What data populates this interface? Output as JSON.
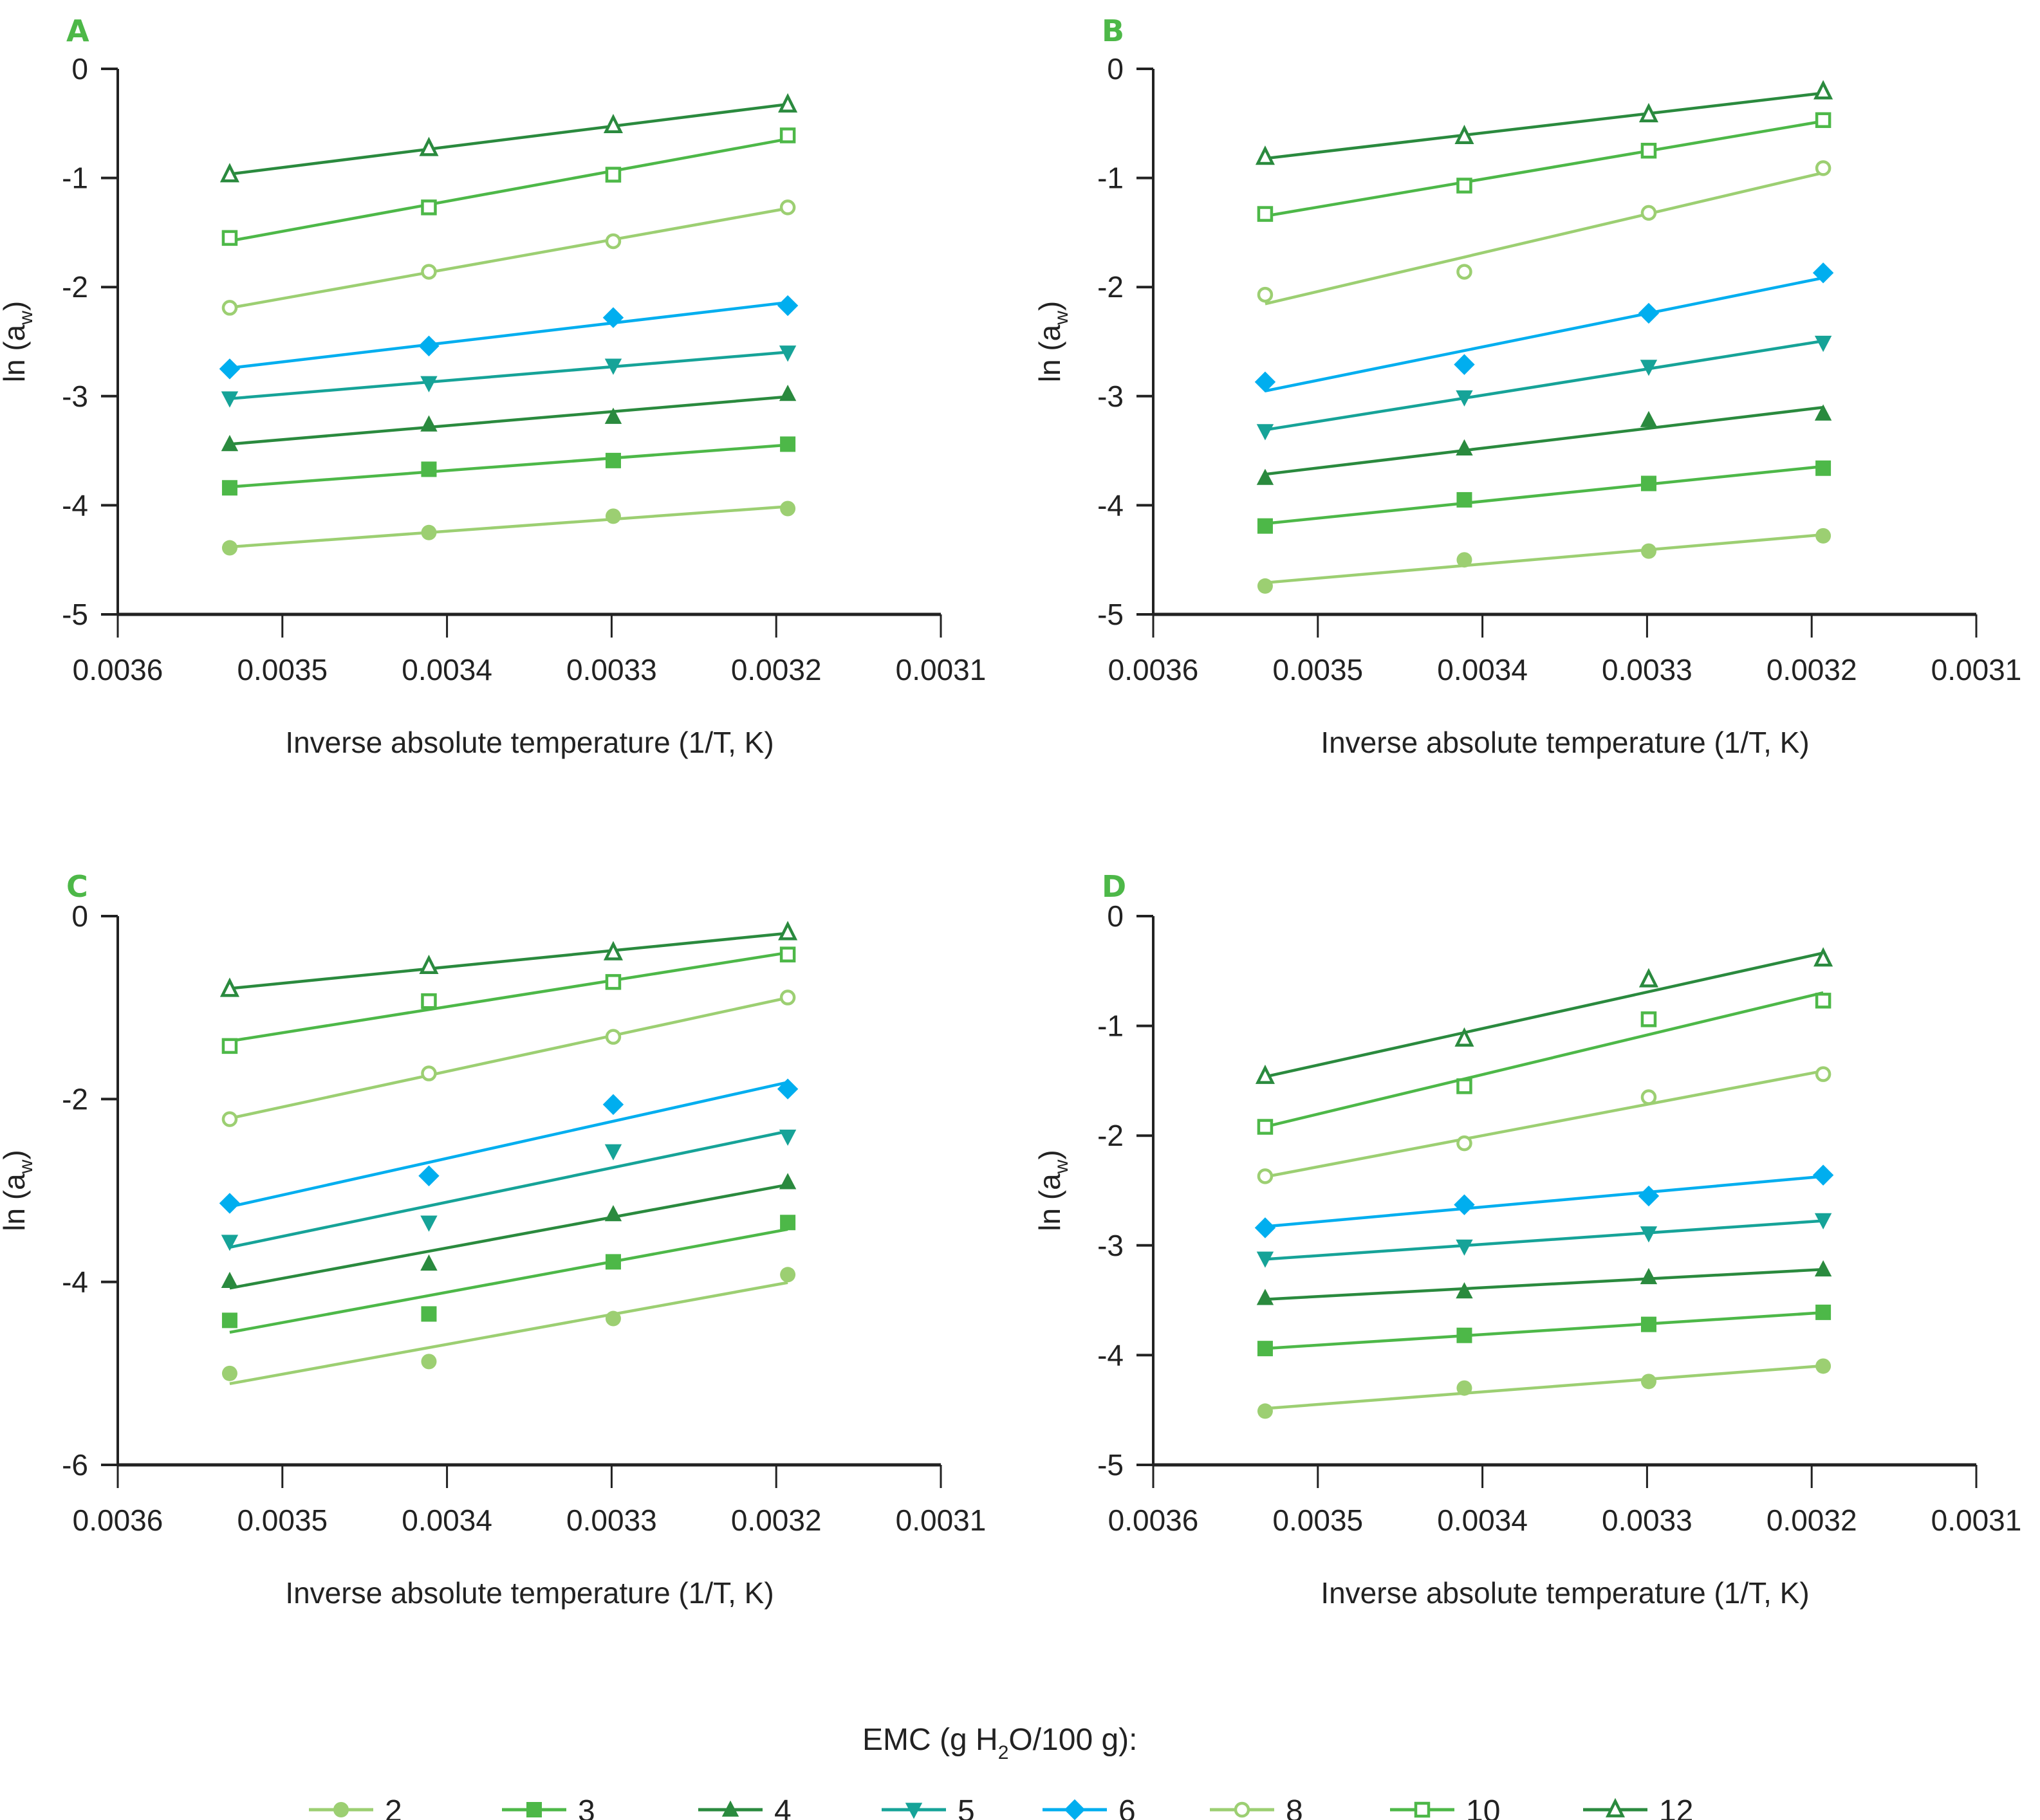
{
  "chart_data": [
    {
      "panel": "A",
      "type": "line",
      "xlabel": "Inverse absolute temperature (1/T, K)",
      "ylabel": "ln (a_w)",
      "xlim": [
        0.0036,
        0.0031
      ],
      "ylim": [
        -5,
        0
      ],
      "xticks": [
        "0.0036",
        "0.0035",
        "0.0034",
        "0.0033",
        "0.0032",
        "0.0031"
      ],
      "yticks": [
        "0",
        "-1",
        "-2",
        "-3",
        "-4",
        "-5"
      ],
      "x": [
        0.003532,
        0.003411,
        0.003299,
        0.003193
      ],
      "series": [
        {
          "name": "2",
          "values": [
            -4.39,
            -4.25,
            -4.1,
            -4.03
          ]
        },
        {
          "name": "3",
          "values": [
            -3.84,
            -3.67,
            -3.59,
            -3.44
          ]
        },
        {
          "name": "4",
          "values": [
            -3.44,
            -3.26,
            -3.19,
            -2.98
          ]
        },
        {
          "name": "5",
          "values": [
            -3.02,
            -2.88,
            -2.72,
            -2.6
          ]
        },
        {
          "name": "6",
          "values": [
            -2.75,
            -2.54,
            -2.28,
            -2.17
          ]
        },
        {
          "name": "8",
          "values": [
            -2.19,
            -1.86,
            -1.58,
            -1.27
          ]
        },
        {
          "name": "10",
          "values": [
            -1.55,
            -1.27,
            -0.97,
            -0.61
          ]
        },
        {
          "name": "12",
          "values": [
            -0.97,
            -0.73,
            -0.52,
            -0.33
          ]
        }
      ]
    },
    {
      "panel": "B",
      "type": "line",
      "xlabel": "Inverse absolute temperature (1/T, K)",
      "ylabel": "ln (a_w)",
      "xlim": [
        0.0036,
        0.0031
      ],
      "ylim": [
        -5,
        0
      ],
      "xticks": [
        "0.0036",
        "0.0035",
        "0.0034",
        "0.0033",
        "0.0032",
        "0.0031"
      ],
      "yticks": [
        "0",
        "-1",
        "-2",
        "-3",
        "-4",
        "-5"
      ],
      "x": [
        0.003532,
        0.003411,
        0.003299,
        0.003193
      ],
      "series": [
        {
          "name": "2",
          "values": [
            -4.74,
            -4.5,
            -4.42,
            -4.28
          ]
        },
        {
          "name": "3",
          "values": [
            -4.19,
            -3.95,
            -3.8,
            -3.66
          ]
        },
        {
          "name": "4",
          "values": [
            -3.75,
            -3.48,
            -3.22,
            -3.16
          ]
        },
        {
          "name": "5",
          "values": [
            -3.32,
            -3.01,
            -2.73,
            -2.51
          ]
        },
        {
          "name": "6",
          "values": [
            -2.87,
            -2.71,
            -2.24,
            -1.87
          ]
        },
        {
          "name": "8",
          "values": [
            -2.07,
            -1.86,
            -1.32,
            -0.91
          ]
        },
        {
          "name": "10",
          "values": [
            -1.33,
            -1.07,
            -0.75,
            -0.47
          ]
        },
        {
          "name": "12",
          "values": [
            -0.81,
            -0.62,
            -0.42,
            -0.21
          ]
        }
      ]
    },
    {
      "panel": "C",
      "type": "line",
      "xlabel": "Inverse absolute temperature (1/T, K)",
      "ylabel": "ln (a_w)",
      "xlim": [
        0.0036,
        0.0031
      ],
      "ylim": [
        -6,
        0
      ],
      "xticks": [
        "0.0036",
        "0.0035",
        "0.0034",
        "0.0033",
        "0.0032",
        "0.0031"
      ],
      "yticks": [
        "0",
        "-2",
        "-4",
        "-6"
      ],
      "x": [
        0.003532,
        0.003411,
        0.003299,
        0.003193
      ],
      "series": [
        {
          "name": "2",
          "values": [
            -5.0,
            -4.87,
            -4.4,
            -3.92
          ]
        },
        {
          "name": "3",
          "values": [
            -4.42,
            -4.35,
            -3.78,
            -3.35
          ]
        },
        {
          "name": "4",
          "values": [
            -3.99,
            -3.8,
            -3.26,
            -2.91
          ]
        },
        {
          "name": "5",
          "values": [
            -3.56,
            -3.35,
            -2.57,
            -2.41
          ]
        },
        {
          "name": "6",
          "values": [
            -3.14,
            -2.84,
            -2.06,
            -1.89
          ]
        },
        {
          "name": "8",
          "values": [
            -2.22,
            -1.72,
            -1.32,
            -0.89
          ]
        },
        {
          "name": "10",
          "values": [
            -1.42,
            -0.93,
            -0.72,
            -0.42
          ]
        },
        {
          "name": "12",
          "values": [
            -0.8,
            -0.55,
            -0.4,
            -0.18
          ]
        }
      ]
    },
    {
      "panel": "D",
      "type": "line",
      "xlabel": "Inverse absolute temperature (1/T, K)",
      "ylabel": "ln (a_w)",
      "xlim": [
        0.0036,
        0.0031
      ],
      "ylim": [
        -5,
        0
      ],
      "xticks": [
        "0.0036",
        "0.0035",
        "0.0034",
        "0.0033",
        "0.0032",
        "0.0031"
      ],
      "yticks": [
        "0",
        "-1",
        "-2",
        "-3",
        "-4",
        "-5"
      ],
      "x": [
        0.003532,
        0.003411,
        0.003299,
        0.003193
      ],
      "series": [
        {
          "name": "2",
          "values": [
            -4.51,
            -4.3,
            -4.24,
            -4.1
          ]
        },
        {
          "name": "3",
          "values": [
            -3.94,
            -3.82,
            -3.72,
            -3.61
          ]
        },
        {
          "name": "4",
          "values": [
            -3.48,
            -3.42,
            -3.29,
            -3.22
          ]
        },
        {
          "name": "5",
          "values": [
            -3.12,
            -3.01,
            -2.89,
            -2.77
          ]
        },
        {
          "name": "6",
          "values": [
            -2.84,
            -2.63,
            -2.55,
            -2.36
          ]
        },
        {
          "name": "8",
          "values": [
            -2.37,
            -2.07,
            -1.65,
            -1.44
          ]
        },
        {
          "name": "10",
          "values": [
            -1.92,
            -1.55,
            -0.94,
            -0.77
          ]
        },
        {
          "name": "12",
          "values": [
            -1.46,
            -1.12,
            -0.58,
            -0.39
          ]
        }
      ]
    }
  ],
  "legend": {
    "title_prefix": "EMC (g H",
    "title_sub": "2",
    "title_suffix": "O/100 g):",
    "placement": "bottom",
    "entries": [
      {
        "label": "2",
        "marker": "filled-circle",
        "color": "#9ccf72"
      },
      {
        "label": "3",
        "marker": "filled-square",
        "color": "#4db848"
      },
      {
        "label": "4",
        "marker": "filled-triangle-up",
        "color": "#2a8a3e"
      },
      {
        "label": "5",
        "marker": "filled-triangle-down",
        "color": "#16a398"
      },
      {
        "label": "6",
        "marker": "filled-diamond",
        "color": "#00aeef"
      },
      {
        "label": "8",
        "marker": "open-circle",
        "color": "#9ccf72"
      },
      {
        "label": "10",
        "marker": "open-square",
        "color": "#4db848"
      },
      {
        "label": "12",
        "marker": "open-triangle-up",
        "color": "#2a8a3e"
      }
    ]
  },
  "axis_labels": {
    "y_main": "ln (a",
    "y_sub": "w",
    "y_close": ")"
  }
}
